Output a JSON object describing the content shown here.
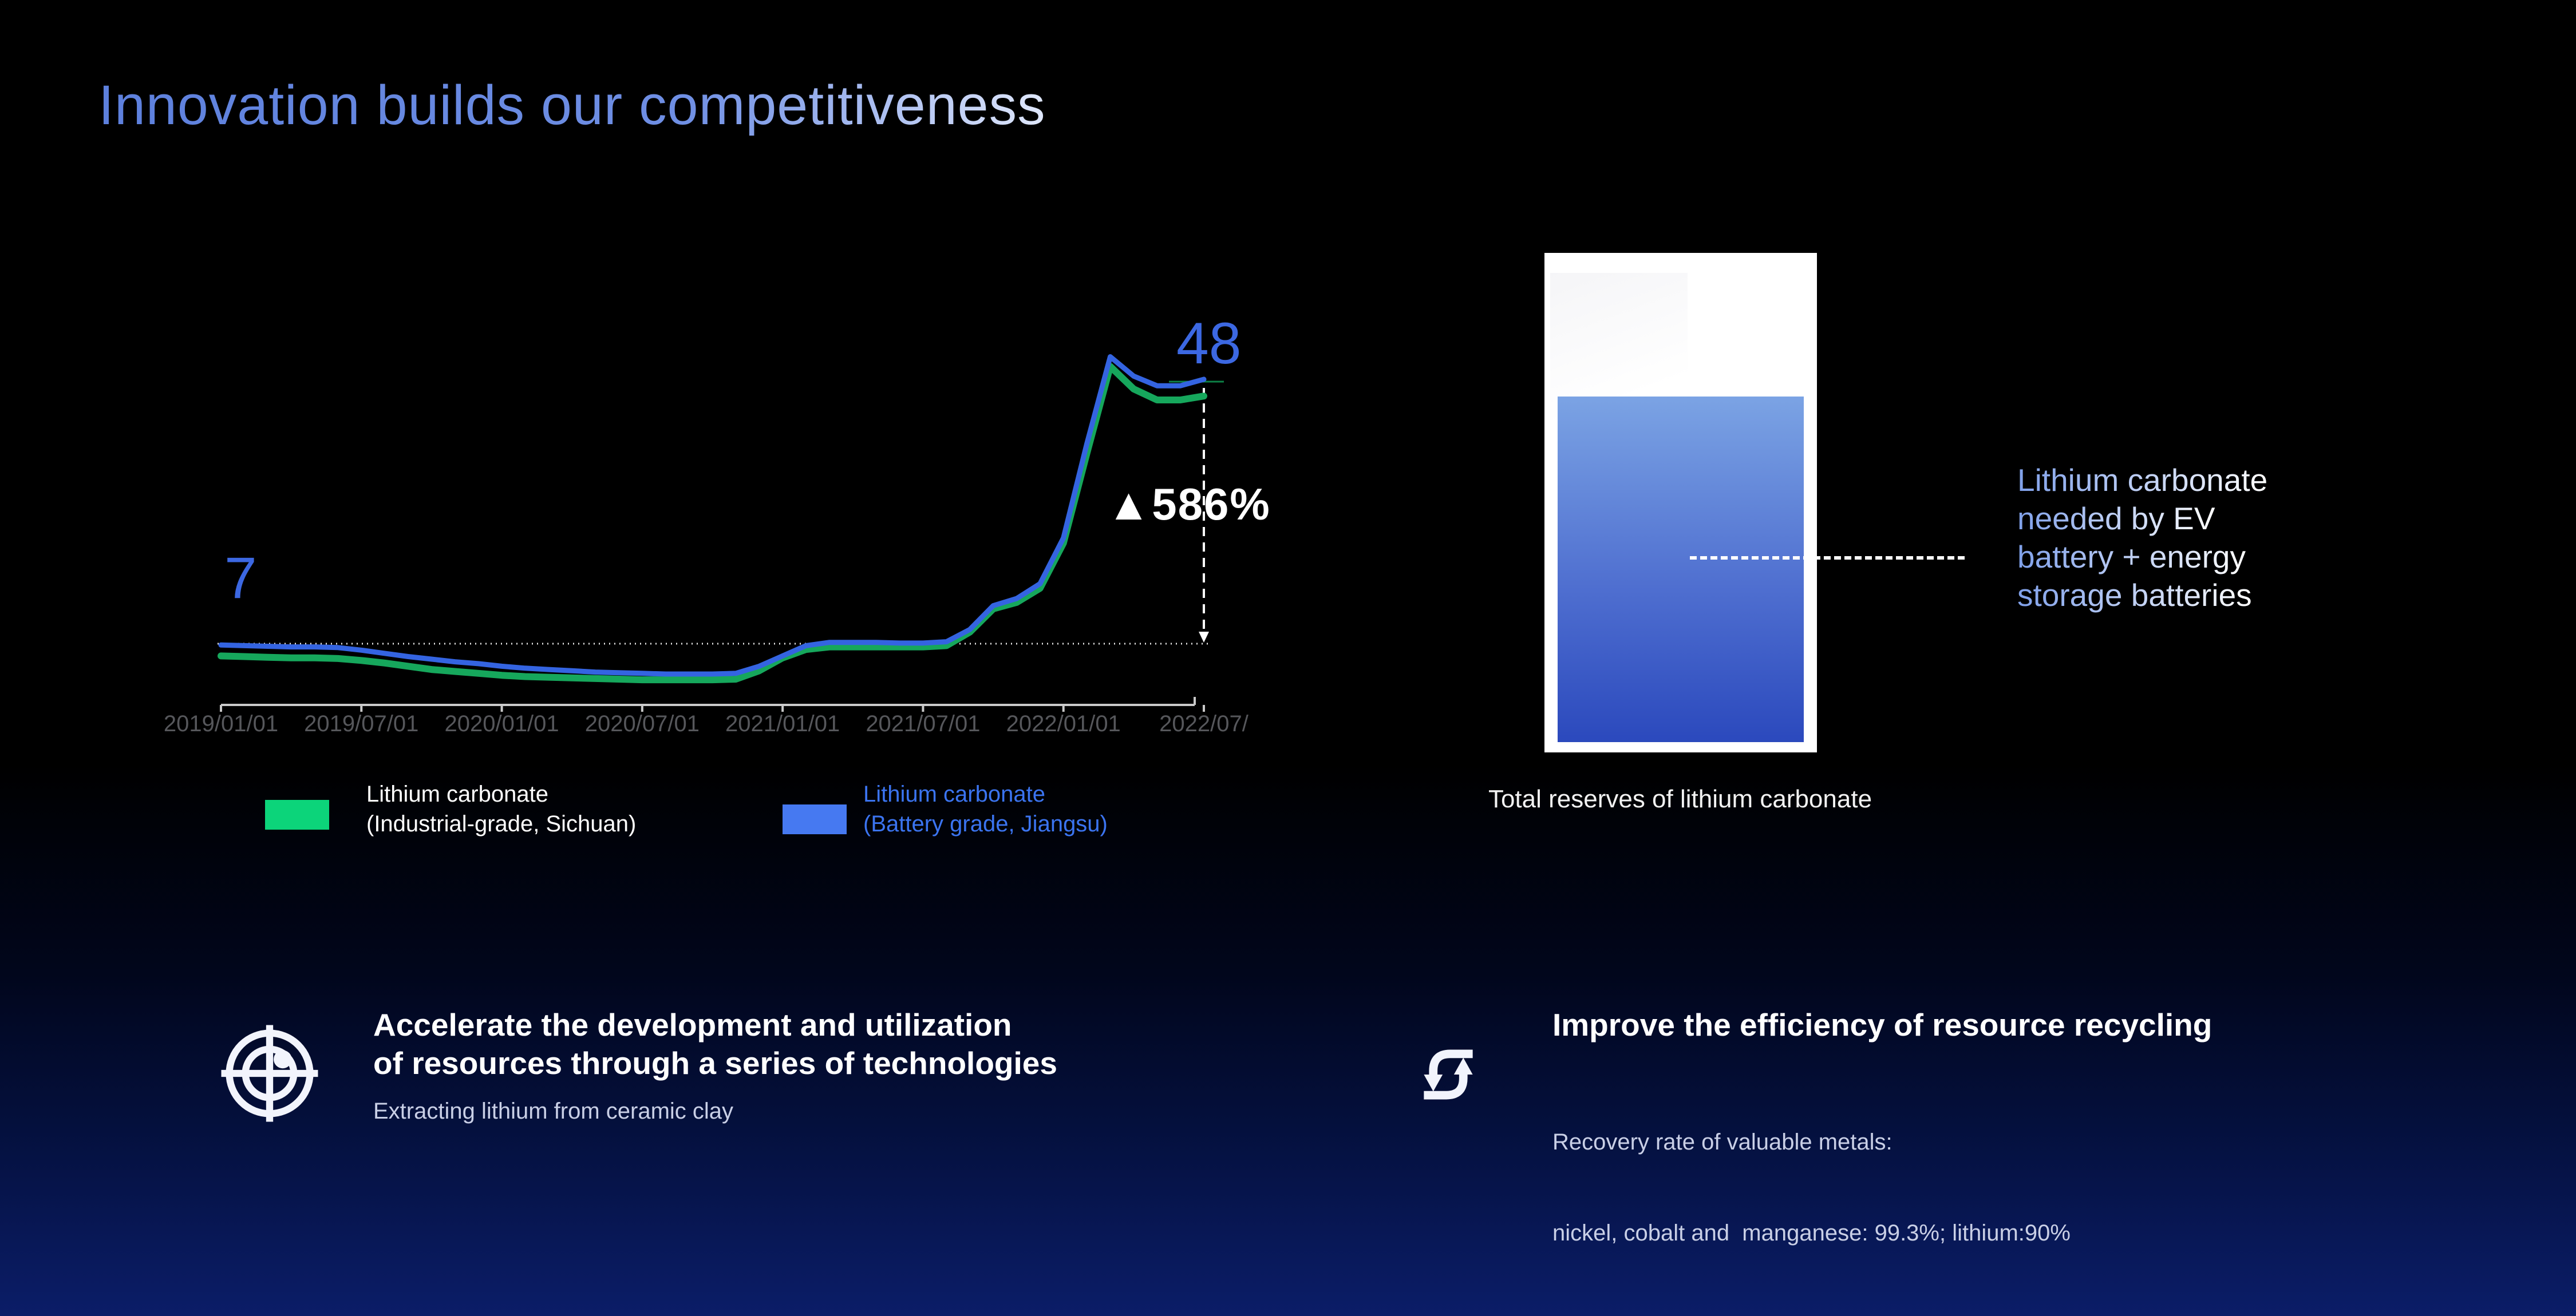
{
  "slide": {
    "title": "Innovation builds our competitiveness"
  },
  "chart_data": {
    "type": "line",
    "x_axis_labels": [
      "2019/01/01",
      "2019/07/01",
      "2020/01/01",
      "2020/07/01",
      "2021/01/01",
      "2021/07/01",
      "2022/01/01",
      "2022/07/"
    ],
    "x_monthly": [
      "2019-01",
      "2019-02",
      "2019-03",
      "2019-04",
      "2019-05",
      "2019-06",
      "2019-07",
      "2019-08",
      "2019-09",
      "2019-10",
      "2019-11",
      "2019-12",
      "2020-01",
      "2020-02",
      "2020-03",
      "2020-04",
      "2020-05",
      "2020-06",
      "2020-07",
      "2020-08",
      "2020-09",
      "2020-10",
      "2020-11",
      "2020-12",
      "2021-01",
      "2021-02",
      "2021-03",
      "2021-04",
      "2021-05",
      "2021-06",
      "2021-07",
      "2021-08",
      "2021-09",
      "2021-10",
      "2021-11",
      "2021-12",
      "2022-01",
      "2022-02",
      "2022-03",
      "2022-04",
      "2022-05",
      "2022-06",
      "2022-07"
    ],
    "series": [
      {
        "id": "industrial",
        "name": "Lithium carbonate (Industrial-grade, Sichuan)",
        "color": "#16a75c",
        "stroke_width": 12,
        "values": [
          5.1,
          5.0,
          4.9,
          4.8,
          4.8,
          4.7,
          4.4,
          4.0,
          3.5,
          3.0,
          2.7,
          2.4,
          2.1,
          1.9,
          1.8,
          1.7,
          1.6,
          1.5,
          1.4,
          1.4,
          1.4,
          1.4,
          1.5,
          2.8,
          4.8,
          6.1,
          6.5,
          6.5,
          6.5,
          6.5,
          6.5,
          6.7,
          8.8,
          12.4,
          13.4,
          15.6,
          22.6,
          36.5,
          50.0,
          46.5,
          44.8,
          44.8,
          45.4
        ]
      },
      {
        "id": "battery",
        "name": "Lithium carbonate (Battery grade, Jiangsu)",
        "color": "#3464e1",
        "stroke_width": 9,
        "values": [
          6.8,
          6.7,
          6.6,
          6.5,
          6.5,
          6.4,
          6.0,
          5.5,
          5.0,
          4.6,
          4.2,
          3.9,
          3.5,
          3.2,
          3.0,
          2.8,
          2.6,
          2.5,
          2.4,
          2.3,
          2.3,
          2.3,
          2.4,
          3.5,
          5.1,
          6.7,
          7.2,
          7.2,
          7.2,
          7.1,
          7.1,
          7.3,
          9.2,
          12.9,
          14.0,
          16.3,
          23.4,
          38.0,
          51.5,
          48.5,
          47.0,
          47.0,
          48.0
        ]
      }
    ],
    "baseline_value": 7,
    "ylim": [
      0,
      54
    ],
    "grid": false,
    "legend_position": "bottom",
    "annotations": {
      "start_value": "7",
      "end_value": "48",
      "change": "▲586%"
    }
  },
  "chart": {
    "legend": [
      {
        "line1": "Lithium carbonate",
        "line2": "(Industrial-grade, Sichuan)",
        "swatch_color": "#0cd47a",
        "text_color": "#ffffff"
      },
      {
        "line1": "Lithium carbonate",
        "line2": "(Battery grade, Jiangsu)",
        "swatch_color": "#4679f1",
        "text_color": "#3b74f0"
      }
    ]
  },
  "reserve_panel": {
    "caption": "Total reserves of lithium carbonate",
    "note_lines": [
      "Lithium carbonate",
      "needed by EV",
      "battery + energy",
      "storage batteries"
    ]
  },
  "features": {
    "left": {
      "heading_line1": "Accelerate the development and utilization",
      "heading_line2": "of resources through a series of technologies",
      "subtext": "Extracting lithium from ceramic clay"
    },
    "right": {
      "heading": "Improve the efficiency of resource recycling",
      "subtext_line1": "Recovery rate of valuable metals:",
      "subtext_line2": "nickel, cobalt and  manganese: 99.3%; lithium:90%"
    }
  },
  "colors": {
    "accent_blue": "#3c68e2",
    "line_blue": "#3464e1",
    "line_green": "#16a75c",
    "legend_green": "#0cd47a",
    "legend_blue": "#4679f1",
    "bar_top": "#7ba3e4",
    "bar_bottom": "#2b49bd",
    "bg_bottom": "#0b1d68"
  }
}
